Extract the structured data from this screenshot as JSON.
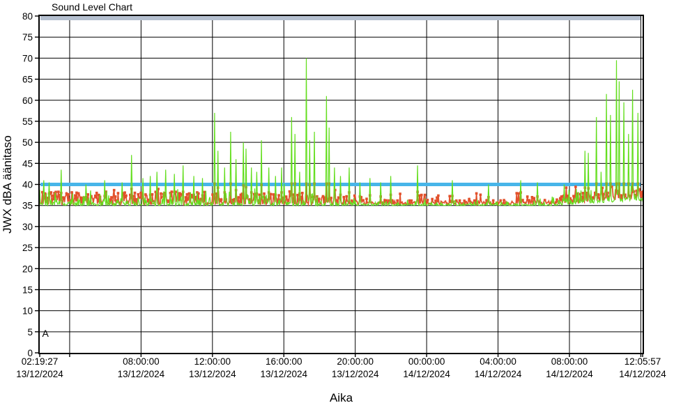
{
  "window": {
    "background": "#ffffff"
  },
  "chart_data": {
    "type": "line",
    "title": "Sound Level Chart",
    "xlabel": "Aika",
    "ylabel": "JWX dBA äänitaso",
    "ylim": [
      0,
      80
    ],
    "y_ticks": [
      0,
      5,
      10,
      15,
      20,
      25,
      30,
      35,
      40,
      45,
      50,
      55,
      60,
      65,
      70,
      75,
      80
    ],
    "x_axis": {
      "total_hours": 33.775,
      "ticks": [
        {
          "time": "02:19:27",
          "date": "13/12/2024",
          "hours": 0
        },
        {
          "time": "08:00:00",
          "date": "13/12/2024",
          "hours": 5.676
        },
        {
          "time": "12:00:00",
          "date": "13/12/2024",
          "hours": 9.676
        },
        {
          "time": "16:00:00",
          "date": "13/12/2024",
          "hours": 13.676
        },
        {
          "time": "20:00:00",
          "date": "13/12/2024",
          "hours": 17.676
        },
        {
          "time": "00:00:00",
          "date": "14/12/2024",
          "hours": 21.676
        },
        {
          "time": "04:00:00",
          "date": "14/12/2024",
          "hours": 25.676
        },
        {
          "time": "08:00:00",
          "date": "14/12/2024",
          "hours": 29.676
        },
        {
          "time": "12:05:57",
          "date": "14/12/2024",
          "hours": 33.775
        }
      ],
      "gridline_hours": [
        1.676,
        5.676,
        9.676,
        13.676,
        17.676,
        21.676,
        25.676,
        29.676,
        33.676
      ]
    },
    "grid": {
      "horizontal": true,
      "vertical": true,
      "color": "#000000"
    },
    "thresholds": [
      {
        "name": "alarm-line-40dBA",
        "value": 40,
        "color": "#47B5E9",
        "thickness": 5
      },
      {
        "name": "ceiling-line-80dBA",
        "value": 79.5,
        "color": "#B5C0D0",
        "thickness": 6
      }
    ],
    "series": [
      {
        "name": "sound-level-peaks",
        "color": "#63DE1D",
        "baseline": 35.0,
        "peaks": [
          [
            0.23,
            41
          ],
          [
            0.51,
            40.5
          ],
          [
            1.21,
            43.5
          ],
          [
            2.6,
            40
          ],
          [
            3.64,
            41
          ],
          [
            4.6,
            40.5
          ],
          [
            5.13,
            47
          ],
          [
            5.79,
            41.5
          ],
          [
            6.2,
            42
          ],
          [
            6.57,
            43
          ],
          [
            7.04,
            43.5
          ],
          [
            7.55,
            42.5
          ],
          [
            8.02,
            44.5
          ],
          [
            8.65,
            42
          ],
          [
            9.12,
            41.5
          ],
          [
            9.78,
            57
          ],
          [
            9.98,
            48
          ],
          [
            10.37,
            44
          ],
          [
            10.68,
            52.5
          ],
          [
            11.0,
            46
          ],
          [
            11.39,
            50
          ],
          [
            11.54,
            48.5
          ],
          [
            11.86,
            44
          ],
          [
            12.17,
            43
          ],
          [
            12.44,
            50.5
          ],
          [
            12.83,
            44
          ],
          [
            13.22,
            42
          ],
          [
            13.54,
            44
          ],
          [
            14.1,
            56
          ],
          [
            14.3,
            52
          ],
          [
            14.55,
            43
          ],
          [
            14.95,
            70
          ],
          [
            15.11,
            50.5
          ],
          [
            15.39,
            52.5
          ],
          [
            16.05,
            61
          ],
          [
            16.21,
            53.5
          ],
          [
            16.5,
            44
          ],
          [
            16.86,
            42
          ],
          [
            17.33,
            44
          ],
          [
            17.92,
            40.5
          ],
          [
            18.51,
            41.5
          ],
          [
            19.09,
            40.5
          ],
          [
            19.68,
            42
          ],
          [
            21.17,
            44.5
          ],
          [
            23.12,
            41
          ],
          [
            25.16,
            40
          ],
          [
            26.95,
            41
          ],
          [
            27.9,
            40.5
          ],
          [
            29.4,
            40
          ],
          [
            30.56,
            48
          ],
          [
            30.72,
            47.5
          ],
          [
            31.2,
            56
          ],
          [
            31.45,
            43
          ],
          [
            31.75,
            61.5
          ],
          [
            31.98,
            56.5
          ],
          [
            32.33,
            69.5
          ],
          [
            32.45,
            64.5
          ],
          [
            32.72,
            59.5
          ],
          [
            33.0,
            52
          ],
          [
            33.23,
            62.5
          ],
          [
            33.5,
            57
          ]
        ]
      },
      {
        "name": "sound-level-average",
        "color": "#E2512C",
        "baseline": 35.3,
        "marker": "square",
        "max_value": 40.4
      }
    ],
    "activity_regions": [
      {
        "label": "daytime-13-12",
        "from": 0,
        "to": 13.7,
        "green_amp": 1.5,
        "spike_p": 0.13,
        "spike_amp": 3.8,
        "red_amp": 3.0,
        "rise": 0
      },
      {
        "label": "evening-13-12",
        "from": 13.7,
        "to": 17.7,
        "green_amp": 1.2,
        "spike_p": 0.09,
        "spike_amp": 3.0,
        "red_amp": 2.2,
        "rise": 0
      },
      {
        "label": "night-13-14-12",
        "from": 17.7,
        "to": 28.7,
        "green_amp": 0.7,
        "spike_p": 0.05,
        "spike_amp": 1.6,
        "red_amp": 1.0,
        "rise": 0
      },
      {
        "label": "morning-14-12",
        "from": 28.7,
        "to": 33.775,
        "green_amp": 1.6,
        "spike_p": 0.14,
        "spike_amp": 3.6,
        "red_amp": 2.2,
        "rise": 1.5
      }
    ],
    "annotation": {
      "text": "A",
      "hours": 0.1,
      "value": 4.3
    },
    "axis_color": "#000000"
  }
}
